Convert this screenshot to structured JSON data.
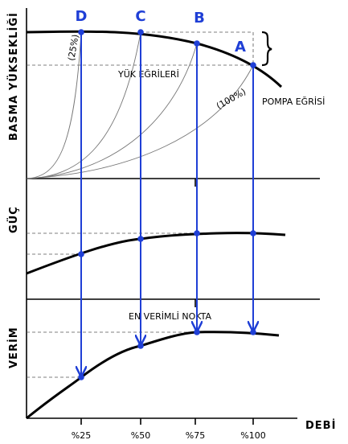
{
  "axes": {
    "head_label": "BASMA YÜKSEKLİĞİ",
    "power_label": "GÜÇ",
    "efficiency_label": "VERİM",
    "flow_label": "DEBİ",
    "ticks": [
      "%25",
      "%50",
      "%75",
      "%100"
    ]
  },
  "annotations": {
    "load_curves": "YÜK EĞRİLERİ",
    "pump_curve": "POMPA EĞRİSİ",
    "best_efficiency": "EN VERİMLİ NOKTA",
    "load_25": "(25%)",
    "load_100": "(100%)"
  },
  "points": [
    {
      "letter": "D"
    },
    {
      "letter": "C"
    },
    {
      "letter": "B"
    },
    {
      "letter": "A"
    }
  ],
  "colors": {
    "accent": "#1f3fd6",
    "curve": "#000000",
    "load_curve": "#777777"
  }
}
